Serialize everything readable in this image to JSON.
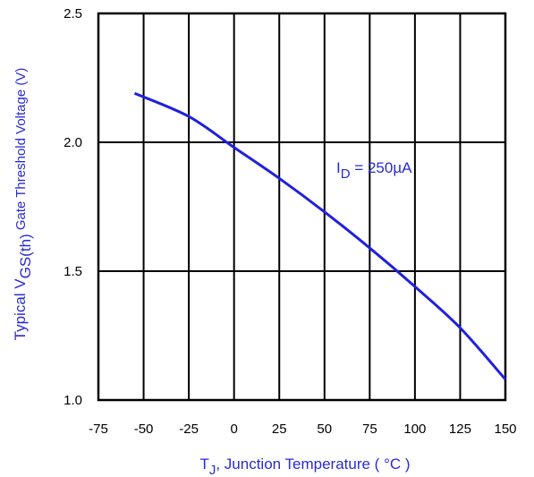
{
  "chart_data": {
    "type": "line",
    "title": "",
    "xlabel": {
      "main": "T",
      "sub": "J",
      "rest": ", Junction Temperature ( °C )"
    },
    "ylabel": {
      "pre": "Typical V",
      "sub": "GS(th)",
      "post": " Gate Threshold Voltage (V)"
    },
    "xlim": [
      -75,
      150
    ],
    "ylim": [
      1.0,
      2.5
    ],
    "xticks": [
      "-75",
      "-50",
      "-25",
      "0",
      "25",
      "50",
      "75",
      "100",
      "125",
      "150"
    ],
    "yticks": [
      "1.0",
      "1.5",
      "2.0",
      "2.5"
    ],
    "grid": true,
    "series": [
      {
        "x": [
          -55,
          -25,
          0,
          25,
          50,
          75,
          100,
          125,
          150
        ],
        "y": [
          2.19,
          2.1,
          1.98,
          1.86,
          1.73,
          1.59,
          1.44,
          1.28,
          1.08
        ]
      }
    ],
    "annotation": {
      "main": "I",
      "sub": "D",
      "rest": " = 250µA"
    },
    "colors": {
      "line": "#2020e0",
      "label": "#2a2ad6",
      "grid": "#000000"
    }
  }
}
